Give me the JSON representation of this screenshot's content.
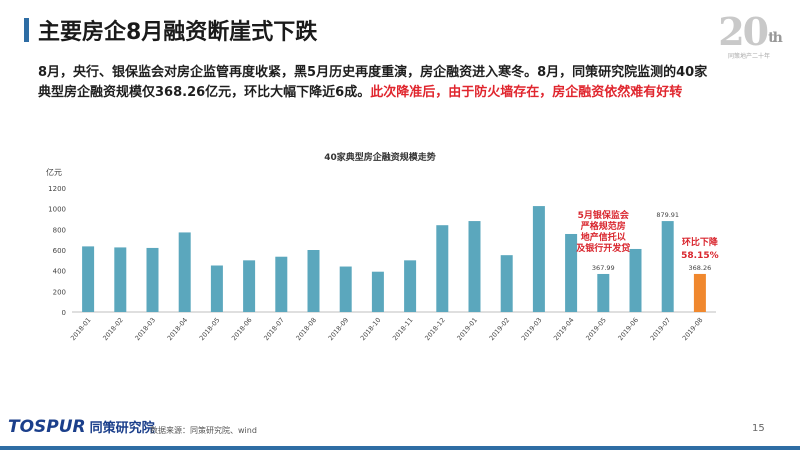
{
  "header": {
    "title": "主要房企8月融资断崖式下跌",
    "logo_number": "20",
    "logo_sup": "th",
    "logo_sub": "同策地产二十年"
  },
  "intro": {
    "text": "8月，央行、银保监会对房企监管再度收紧，黑5月历史再度重演，房企融资进入寒冬。8月，同策研究院监测的40家典型房企融资规模仅368.26亿元，环比大幅下降近6成。",
    "highlight": "此次降准后，由于防火墙存在，房企融资依然难有好转"
  },
  "chart_data": {
    "type": "bar",
    "title": "40家典型房企融资规模走势",
    "ylabel": "亿元",
    "ylim": [
      0,
      1200
    ],
    "yticks": [
      0,
      200,
      400,
      600,
      800,
      1000,
      1200
    ],
    "categories": [
      "2018-01",
      "2018-02",
      "2018-03",
      "2018-04",
      "2018-05",
      "2018-06",
      "2018-07",
      "2018-08",
      "2018-09",
      "2018-10",
      "2018-11",
      "2018-12",
      "2019-01",
      "2019-02",
      "2019-03",
      "2019-04",
      "2019-05",
      "2019-06",
      "2019-07",
      "2019-08"
    ],
    "values": [
      635,
      625,
      620,
      770,
      450,
      500,
      535,
      600,
      440,
      390,
      500,
      840,
      880,
      550,
      1025,
      755,
      367.99,
      610,
      879.91,
      368.26
    ],
    "data_labels": {
      "16": "367.99",
      "18": "879.91",
      "19": "368.26"
    },
    "bar_color": "#5ba7bd",
    "highlight_color": "#f0882e",
    "highlight_index": 19,
    "grid": false,
    "annotations": [
      {
        "text": "5月银保监会严格规范房地产信托以及银行开发贷",
        "color": "#d9262e"
      },
      {
        "text": "环比下降",
        "color": "#d9262e"
      },
      {
        "text": "58.15%",
        "color": "#d9262e"
      }
    ]
  },
  "footer": {
    "brand": "TOSPUR",
    "brand_cn": "同策研究院",
    "source": "数据来源：同策研究院、wind",
    "page": "15"
  }
}
